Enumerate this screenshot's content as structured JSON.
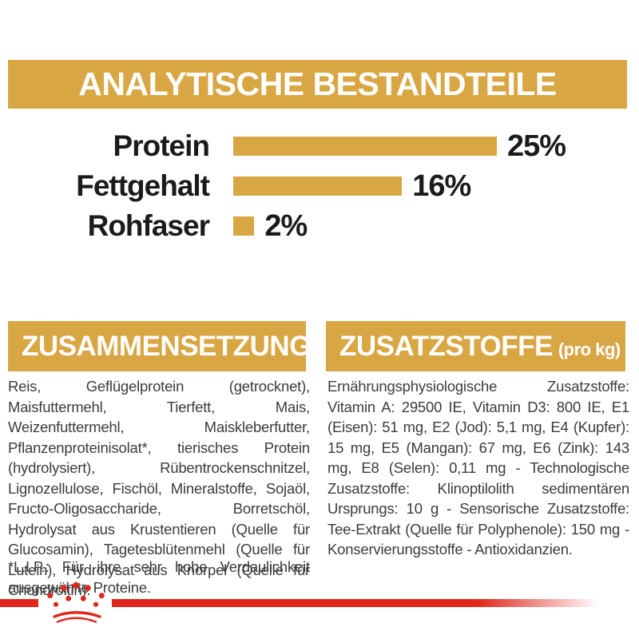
{
  "title": "ANALYTISCHE BESTANDTEILE",
  "chart_data": {
    "type": "bar",
    "title": "ANALYTISCHE BESTANDTEILE",
    "categories": [
      "Protein",
      "Fettgehalt",
      "Rohfaser"
    ],
    "values": [
      25,
      16,
      2
    ],
    "value_labels": [
      "25%",
      "16%",
      "2%"
    ],
    "unit": "%",
    "xlim": [
      0,
      25
    ],
    "bar_color": "#D9A644",
    "orientation": "horizontal",
    "grid": false,
    "legend": false
  },
  "composition": {
    "header": "ZUSAMMENSETZUNG",
    "body": "Reis, Geflügelprotein (getrocknet), Maisfuttermehl, Tierfett, Mais, Weizenfuttermehl, Maiskleberfutter, Pflanzenproteinisolat*, tierisches Protein (hydrolysiert), Rübentrockenschnitzel, Lignozellulose, Fischöl, Mineralstoffe, Sojaöl, Fructo-Oligosaccharide, Borretschöl, Hydrolysat aus Krustentieren (Quelle für Glucosamin), Tagetesblütenmehl (Quelle für Lutein), Hydrolysat aus Knorpel (Quelle für Chondroitin).",
    "footnote": "*L.I.P.: Für ihre sehr hohe Verdaulichkeit ausgewählte Proteine."
  },
  "additives": {
    "header": "ZUSATZSTOFFE",
    "header_suffix": "(pro kg)",
    "body": "Ernährungsphysiologische Zusatzstoffe: Vitamin A: 29500 IE, Vitamin D3: 800 IE, E1 (Eisen): 51 mg, E2 (Jod): 5,1 mg, E4 (Kupfer): 15 mg, E5 (Mangan): 67 mg, E6 (Zink): 143 mg, E8 (Selen): 0,11 mg - Technologische Zusatzstoffe: Klinoptilolith sedimentären Ursprungs: 10 g - Sensorische Zusatzstoffe: Tee-Extrakt (Quelle für Polyphenole): 150 mg - Konservierungsstoffe - Antioxidanzien."
  },
  "brand": {
    "logo": "royal-canin-crown",
    "color_red": "#E1261C",
    "color_gold": "#D9A644"
  }
}
